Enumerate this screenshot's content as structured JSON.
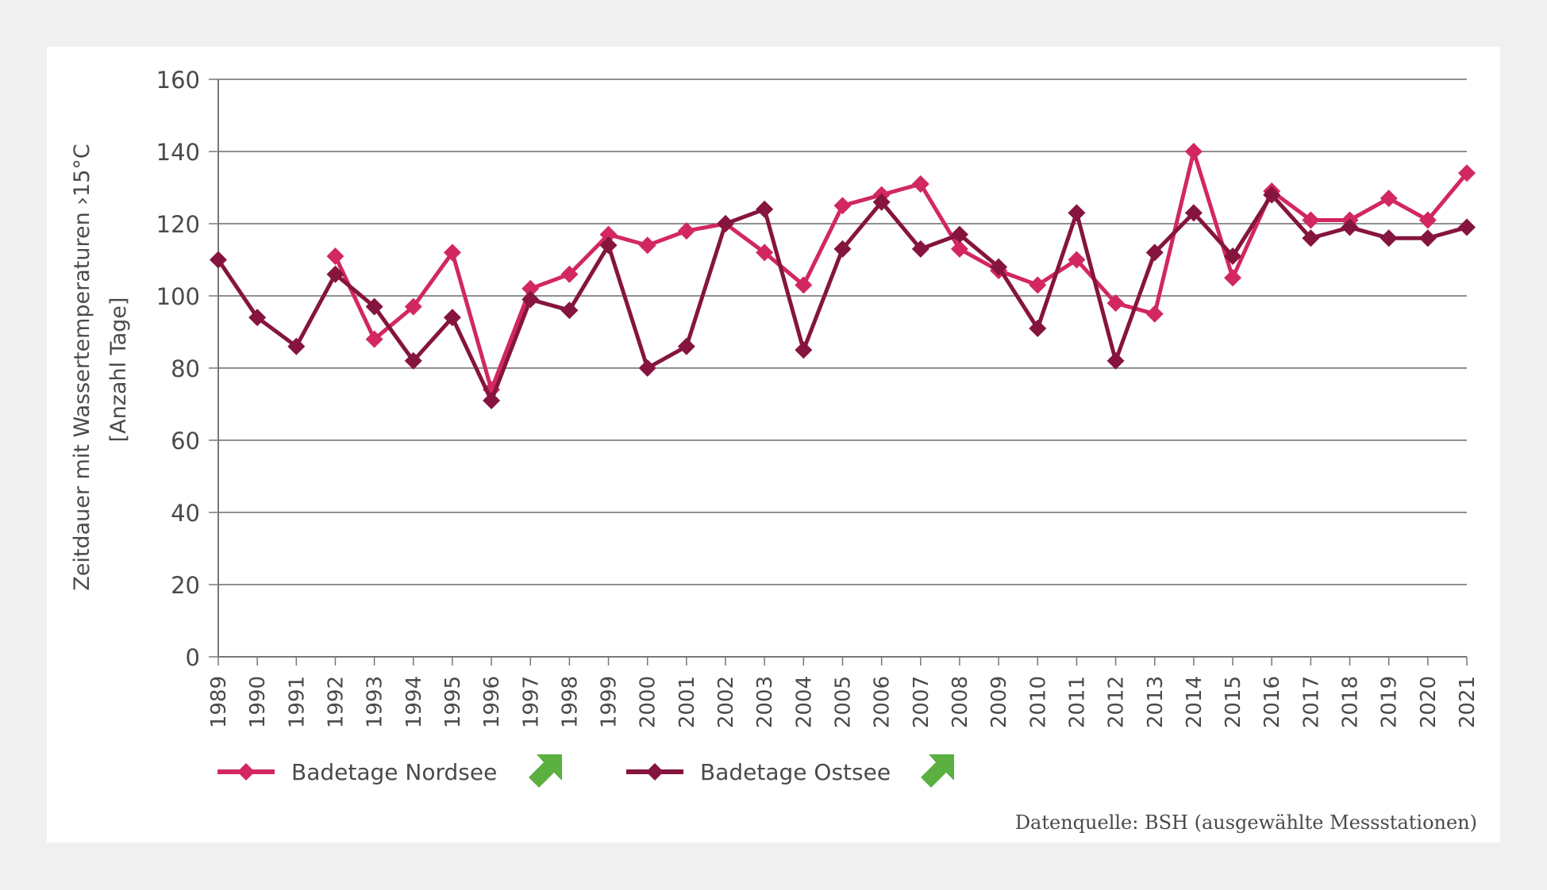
{
  "chart_data": {
    "type": "line",
    "title": "",
    "xlabel": "",
    "ylabel": "Zeitdauer mit Wassertemperaturen ›15°C",
    "ylabel_line2": "[Anzahl Tage]",
    "ylim": [
      0,
      160
    ],
    "yticks": [
      0,
      20,
      40,
      60,
      80,
      100,
      120,
      140,
      160
    ],
    "grid": true,
    "legend_position": "bottom",
    "x": [
      1989,
      1990,
      1991,
      1992,
      1993,
      1994,
      1995,
      1996,
      1997,
      1998,
      1999,
      2000,
      2001,
      2002,
      2003,
      2004,
      2005,
      2006,
      2007,
      2008,
      2009,
      2010,
      2011,
      2012,
      2013,
      2014,
      2015,
      2016,
      2017,
      2018,
      2019,
      2020,
      2021
    ],
    "series": [
      {
        "name": "Badetage Nordsee",
        "color": "#d2285f",
        "trend": "increasing",
        "trend_icon": "trend-up-arrow-icon",
        "trend_color": "#5bb040",
        "values": [
          null,
          null,
          null,
          111,
          88,
          97,
          112,
          74,
          102,
          106,
          117,
          114,
          118,
          120,
          112,
          103,
          125,
          128,
          131,
          113,
          107,
          103,
          110,
          98,
          95,
          140,
          105,
          129,
          121,
          121,
          127,
          121,
          134
        ]
      },
      {
        "name": "Badetage Ostsee",
        "color": "#85143e",
        "trend": "increasing",
        "trend_icon": "trend-up-arrow-icon",
        "trend_color": "#5bb040",
        "values": [
          110,
          94,
          86,
          106,
          97,
          82,
          94,
          71,
          99,
          96,
          114,
          80,
          86,
          120,
          124,
          85,
          113,
          126,
          113,
          117,
          108,
          91,
          123,
          82,
          112,
          123,
          111,
          128,
          116,
          119,
          116,
          116,
          119
        ]
      }
    ],
    "source": "Datenquelle: BSH (ausgewählte Messstationen)"
  }
}
